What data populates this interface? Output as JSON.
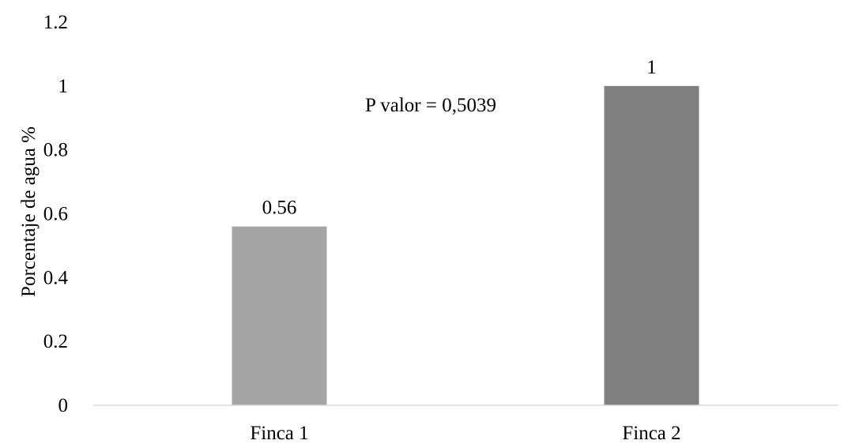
{
  "chart_data": {
    "type": "bar",
    "title": "",
    "xlabel": "",
    "ylabel": "Porcentaje de agua %",
    "categories": [
      "Finca 1",
      "Finca 2"
    ],
    "values": [
      0.56,
      1
    ],
    "data_labels": [
      "0.56",
      "1"
    ],
    "bar_colors": [
      "#a5a5a5",
      "#7f7f7f"
    ],
    "ylim": [
      0,
      1.2
    ],
    "yticks": [
      0,
      0.2,
      0.4,
      0.6,
      0.8,
      1,
      1.2
    ],
    "ytick_labels": [
      "0",
      "0.2",
      "0.4",
      "0.6",
      "0.8",
      "1",
      "1.2"
    ],
    "grid": false,
    "legend": "none",
    "annotation": "P valor = 0,5039"
  }
}
